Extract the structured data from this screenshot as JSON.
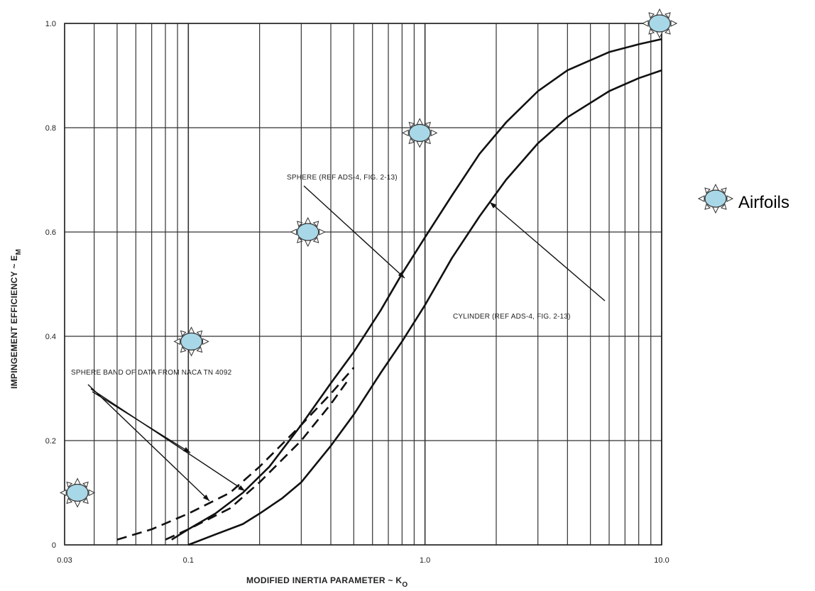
{
  "chart_data": {
    "type": "line",
    "xlabel": "MODIFIED INERTIA PARAMETER ~ K",
    "xlabel_sub": "O",
    "ylabel": "IMPINGEMENT EFFICIENCY ~ E",
    "ylabel_sub": "M",
    "x_scale": "log",
    "xlim": [
      0.03,
      10.0
    ],
    "ylim": [
      0,
      1.0
    ],
    "grid": true,
    "x_ticks": [
      {
        "value": 0.03,
        "label": "0.03"
      },
      {
        "value": 0.1,
        "label": "0.1"
      },
      {
        "value": 1.0,
        "label": "1.0"
      },
      {
        "value": 10.0,
        "label": "10.0"
      }
    ],
    "y_ticks": [
      {
        "value": 0,
        "label": "0"
      },
      {
        "value": 0.2,
        "label": "0.2"
      },
      {
        "value": 0.4,
        "label": "0.4"
      },
      {
        "value": 0.6,
        "label": "0.6"
      },
      {
        "value": 0.8,
        "label": "0.8"
      },
      {
        "value": 1.0,
        "label": "1.0"
      }
    ],
    "series": [
      {
        "name": "SPHERE (REF ADS-4, FIG. 2-13)",
        "style": "solid",
        "x": [
          0.085,
          0.1,
          0.13,
          0.17,
          0.22,
          0.3,
          0.4,
          0.5,
          0.65,
          0.8,
          1.0,
          1.3,
          1.7,
          2.2,
          3.0,
          4.0,
          6.0,
          8.0,
          10.0
        ],
        "y": [
          0.01,
          0.03,
          0.06,
          0.1,
          0.15,
          0.23,
          0.31,
          0.37,
          0.45,
          0.52,
          0.59,
          0.67,
          0.75,
          0.81,
          0.87,
          0.91,
          0.945,
          0.96,
          0.97
        ]
      },
      {
        "name": "CYLINDER (REF ADS-4, FIG. 2-13)",
        "style": "solid",
        "x": [
          0.1,
          0.13,
          0.17,
          0.2,
          0.25,
          0.3,
          0.4,
          0.5,
          0.65,
          0.8,
          1.0,
          1.3,
          1.7,
          2.2,
          3.0,
          4.0,
          6.0,
          8.0,
          10.0
        ],
        "y": [
          0.0,
          0.02,
          0.04,
          0.06,
          0.09,
          0.12,
          0.19,
          0.25,
          0.33,
          0.39,
          0.46,
          0.55,
          0.63,
          0.7,
          0.77,
          0.82,
          0.87,
          0.895,
          0.91
        ]
      },
      {
        "name": "SPHERE BAND OF DATA FROM NACA TN 4092",
        "style": "dashed",
        "x": [
          0.05,
          0.07,
          0.1,
          0.15,
          0.2,
          0.3,
          0.4,
          0.5
        ],
        "y": [
          0.01,
          0.03,
          0.06,
          0.1,
          0.15,
          0.23,
          0.29,
          0.34
        ]
      },
      {
        "name": "",
        "style": "dashed",
        "x": [
          0.08,
          0.1,
          0.15,
          0.2,
          0.3,
          0.4,
          0.48
        ],
        "y": [
          0.01,
          0.03,
          0.07,
          0.12,
          0.2,
          0.27,
          0.32
        ]
      }
    ],
    "annotations": [
      {
        "text": "SPHERE (REF ADS-4, FIG. 2-13)"
      },
      {
        "text": "CYLINDER (REF ADS-4, FIG. 2-13)"
      },
      {
        "text": "SPHERE BAND OF DATA FROM NACA TN 4092"
      }
    ],
    "markers": [
      {
        "name": "airfoil",
        "x": 0.034,
        "y": 0.1
      },
      {
        "name": "airfoil",
        "x": 0.103,
        "y": 0.39
      },
      {
        "name": "airfoil",
        "x": 0.32,
        "y": 0.6
      },
      {
        "name": "airfoil",
        "x": 0.95,
        "y": 0.79
      },
      {
        "name": "airfoil",
        "x": 9.8,
        "y": 1.0
      }
    ],
    "legend": {
      "label": "Airfoils",
      "placement": "right",
      "icon": "airfoil-marker-icon"
    },
    "colors": {
      "line": "#111111",
      "grid": "#333333",
      "marker_fill": "#a8d8e8",
      "marker_stroke": "#333333"
    }
  }
}
